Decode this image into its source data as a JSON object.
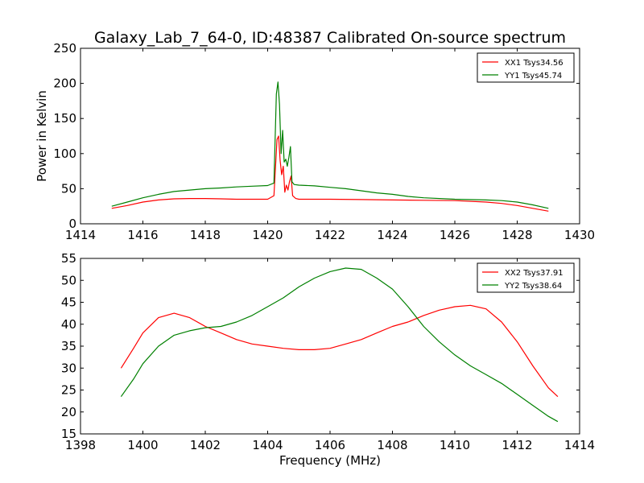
{
  "figure": {
    "title": "Galaxy_Lab_7_64-0, ID:48387 Calibrated On-source spectrum"
  },
  "chart_data": [
    {
      "type": "line",
      "title": "Galaxy_Lab_7_64-0, ID:48387 Calibrated On-source spectrum",
      "xlabel": "",
      "ylabel": "Power in Kelvin",
      "xlim": [
        1414,
        1430
      ],
      "ylim": [
        0,
        250
      ],
      "x_ticks": [
        "1414",
        "1416",
        "1418",
        "1420",
        "1422",
        "1424",
        "1426",
        "1428",
        "1430"
      ],
      "y_ticks": [
        "0",
        "50",
        "100",
        "150",
        "200",
        "250"
      ],
      "grid": false,
      "legend_position": "top-right",
      "series": [
        {
          "name": "XX1 Tsys34.56",
          "color": "#ff0000",
          "x": [
            1415.0,
            1415.5,
            1416.0,
            1416.5,
            1417.0,
            1417.5,
            1418.0,
            1418.5,
            1419.0,
            1419.5,
            1420.0,
            1420.2,
            1420.3,
            1420.35,
            1420.4,
            1420.45,
            1420.5,
            1420.55,
            1420.6,
            1420.65,
            1420.7,
            1420.75,
            1420.8,
            1420.9,
            1421.0,
            1421.5,
            1422.0,
            1423.0,
            1424.0,
            1425.0,
            1426.0,
            1427.0,
            1427.5,
            1428.0,
            1428.5,
            1429.0
          ],
          "y": [
            22,
            26,
            31,
            34,
            35.5,
            36,
            36,
            35.5,
            35,
            35,
            35,
            40,
            120,
            125,
            90,
            70,
            82,
            45,
            55,
            48,
            60,
            68,
            40,
            36,
            35,
            35,
            35,
            34.5,
            34,
            33.5,
            33,
            31,
            29,
            26,
            22,
            18
          ]
        },
        {
          "name": "YY1 Tsys45.74",
          "color": "#008000",
          "x": [
            1415.0,
            1415.5,
            1416.0,
            1416.5,
            1417.0,
            1417.5,
            1418.0,
            1418.5,
            1419.0,
            1419.5,
            1420.0,
            1420.2,
            1420.28,
            1420.33,
            1420.38,
            1420.43,
            1420.48,
            1420.53,
            1420.58,
            1420.63,
            1420.68,
            1420.73,
            1420.78,
            1420.85,
            1421.0,
            1421.5,
            1422.0,
            1422.5,
            1423.0,
            1423.5,
            1424.0,
            1424.5,
            1425.0,
            1426.0,
            1427.0,
            1427.5,
            1428.0,
            1428.5,
            1429.0
          ],
          "y": [
            25,
            31,
            37,
            42,
            46,
            48,
            50,
            51,
            52.5,
            53.5,
            54.5,
            58,
            185,
            202,
            170,
            100,
            133,
            88,
            92,
            82,
            95,
            110,
            60,
            56,
            55,
            54,
            52,
            50,
            47,
            44,
            42,
            39,
            37,
            35,
            34,
            33,
            31,
            27,
            22
          ]
        }
      ]
    },
    {
      "type": "line",
      "title": "",
      "xlabel": "Frequency (MHz)",
      "ylabel": "",
      "xlim": [
        1398,
        1414
      ],
      "ylim": [
        15,
        55
      ],
      "x_ticks": [
        "1398",
        "1400",
        "1402",
        "1404",
        "1406",
        "1408",
        "1410",
        "1412",
        "1414"
      ],
      "y_ticks": [
        "15",
        "20",
        "25",
        "30",
        "35",
        "40",
        "45",
        "50",
        "55"
      ],
      "grid": false,
      "legend_position": "top-right",
      "series": [
        {
          "name": "XX2 Tsys37.91",
          "color": "#ff0000",
          "x": [
            1399.3,
            1399.7,
            1400.0,
            1400.5,
            1401.0,
            1401.5,
            1402.0,
            1402.5,
            1403.0,
            1403.5,
            1404.0,
            1404.5,
            1405.0,
            1405.5,
            1406.0,
            1406.5,
            1407.0,
            1407.5,
            1408.0,
            1408.5,
            1409.0,
            1409.5,
            1410.0,
            1410.5,
            1411.0,
            1411.5,
            1412.0,
            1412.5,
            1413.0,
            1413.3
          ],
          "y": [
            30,
            34.5,
            38,
            41.5,
            42.5,
            41.5,
            39.5,
            38,
            36.5,
            35.5,
            35,
            34.5,
            34.2,
            34.2,
            34.5,
            35.5,
            36.5,
            38,
            39.5,
            40.5,
            42,
            43.2,
            44,
            44.3,
            43.5,
            40.5,
            36,
            30.5,
            25.5,
            23.5
          ]
        },
        {
          "name": "YY2 Tsys38.64",
          "color": "#008000",
          "x": [
            1399.3,
            1399.7,
            1400.0,
            1400.5,
            1401.0,
            1401.5,
            1402.0,
            1402.5,
            1403.0,
            1403.5,
            1404.0,
            1404.5,
            1405.0,
            1405.5,
            1406.0,
            1406.5,
            1407.0,
            1407.5,
            1408.0,
            1408.5,
            1409.0,
            1409.5,
            1410.0,
            1410.5,
            1411.0,
            1411.5,
            1412.0,
            1412.5,
            1413.0,
            1413.3
          ],
          "y": [
            23.5,
            27.5,
            31,
            35,
            37.5,
            38.5,
            39.2,
            39.5,
            40.5,
            42,
            44,
            46,
            48.5,
            50.5,
            52,
            52.8,
            52.5,
            50.5,
            48,
            44,
            39.5,
            36,
            33,
            30.5,
            28.5,
            26.5,
            24,
            21.5,
            19,
            17.8
          ]
        }
      ]
    }
  ]
}
